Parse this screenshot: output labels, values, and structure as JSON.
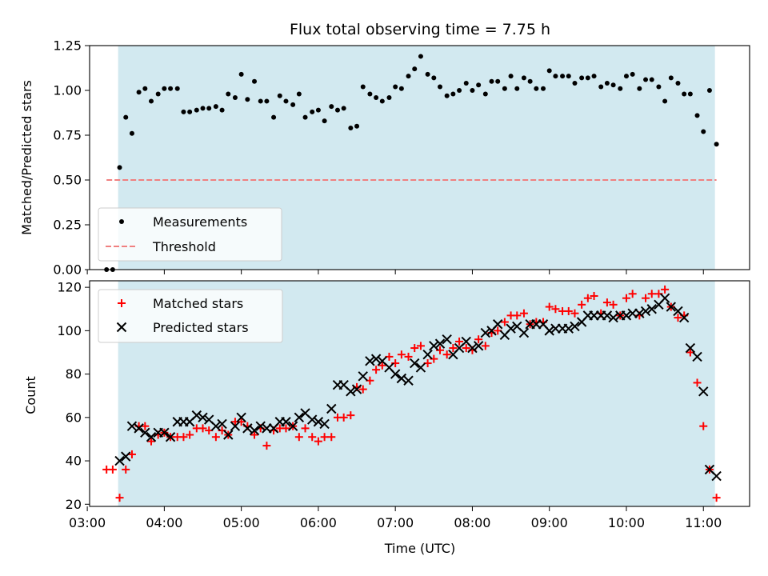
{
  "figure": {
    "title": "Flux total observing time = 7.75 h"
  },
  "chart_data": [
    {
      "type": "scatter",
      "panel": "top",
      "xlabel": "",
      "ylabel": "Matched/Predicted stars",
      "ylim": [
        0,
        1.25
      ],
      "yticks": [
        "0.00",
        "0.25",
        "0.50",
        "0.75",
        "1.00",
        "1.25"
      ],
      "xlim": [
        3.03,
        11.6
      ],
      "shaded_span": [
        3.4,
        11.15
      ],
      "shade_color": "#d2e9f0",
      "legend_position": "lower left",
      "series": [
        {
          "name": "Measurements",
          "marker": "dot",
          "color": "#000000",
          "x": [
            3.25,
            3.33,
            3.42,
            3.5,
            3.58,
            3.67,
            3.75,
            3.83,
            3.92,
            4.0,
            4.08,
            4.17,
            4.25,
            4.33,
            4.42,
            4.5,
            4.58,
            4.67,
            4.75,
            4.83,
            4.92,
            5.0,
            5.08,
            5.17,
            5.25,
            5.33,
            5.42,
            5.5,
            5.58,
            5.67,
            5.75,
            5.83,
            5.92,
            6.0,
            6.08,
            6.17,
            6.25,
            6.33,
            6.42,
            6.5,
            6.58,
            6.67,
            6.75,
            6.83,
            6.92,
            7.0,
            7.08,
            7.17,
            7.25,
            7.33,
            7.42,
            7.5,
            7.58,
            7.67,
            7.75,
            7.83,
            7.92,
            8.0,
            8.08,
            8.17,
            8.25,
            8.33,
            8.42,
            8.5,
            8.58,
            8.67,
            8.75,
            8.83,
            8.92,
            9.0,
            9.08,
            9.17,
            9.25,
            9.33,
            9.42,
            9.5,
            9.58,
            9.67,
            9.75,
            9.83,
            9.92,
            10.0,
            10.08,
            10.17,
            10.25,
            10.33,
            10.42,
            10.5,
            10.58,
            10.67,
            10.75,
            10.83,
            10.92,
            11.0,
            11.08,
            11.17
          ],
          "y": [
            0.0,
            0.0,
            0.57,
            0.85,
            0.76,
            0.99,
            1.01,
            0.94,
            0.98,
            1.01,
            1.01,
            1.01,
            0.88,
            0.88,
            0.89,
            0.9,
            0.9,
            0.91,
            0.89,
            0.98,
            0.96,
            1.09,
            0.95,
            1.05,
            0.94,
            0.94,
            0.85,
            0.97,
            0.94,
            0.92,
            0.98,
            0.85,
            0.88,
            0.89,
            0.83,
            0.91,
            0.89,
            0.9,
            0.79,
            0.8,
            1.02,
            0.98,
            0.96,
            0.94,
            0.96,
            1.02,
            1.01,
            1.08,
            1.12,
            1.19,
            1.09,
            1.07,
            1.02,
            0.97,
            0.98,
            1.0,
            1.04,
            1.0,
            1.03,
            0.98,
            1.05,
            1.05,
            1.01,
            1.08,
            1.01,
            1.07,
            1.05,
            1.01,
            1.01,
            1.11,
            1.08,
            1.08,
            1.08,
            1.04,
            1.07,
            1.07,
            1.08,
            1.02,
            1.04,
            1.03,
            1.01,
            1.08,
            1.09,
            1.01,
            1.06,
            1.06,
            1.02,
            0.94,
            1.07,
            1.04,
            0.98,
            0.98,
            0.86,
            0.77,
            1.0,
            0.7
          ]
        },
        {
          "name": "Threshold",
          "marker": "dashed-line",
          "color": "#f08080",
          "x": [
            3.25,
            11.17
          ],
          "y": [
            0.5,
            0.5
          ]
        }
      ]
    },
    {
      "type": "scatter",
      "panel": "bottom",
      "xlabel": "Time (UTC)",
      "ylabel": "Count",
      "ylim": [
        19,
        123
      ],
      "yticks": [
        "20",
        "40",
        "60",
        "80",
        "100",
        "120"
      ],
      "xlim": [
        3.03,
        11.6
      ],
      "xticks": [
        "03:00",
        "04:00",
        "05:00",
        "06:00",
        "07:00",
        "08:00",
        "09:00",
        "10:00",
        "11:00"
      ],
      "shaded_span": [
        3.4,
        11.15
      ],
      "shade_color": "#d2e9f0",
      "legend_position": "upper left",
      "x": [
        3.25,
        3.33,
        3.42,
        3.5,
        3.58,
        3.67,
        3.75,
        3.83,
        3.92,
        4.0,
        4.08,
        4.17,
        4.25,
        4.33,
        4.42,
        4.5,
        4.58,
        4.67,
        4.75,
        4.83,
        4.92,
        5.0,
        5.08,
        5.17,
        5.25,
        5.33,
        5.42,
        5.5,
        5.58,
        5.67,
        5.75,
        5.83,
        5.92,
        6.0,
        6.08,
        6.17,
        6.25,
        6.33,
        6.42,
        6.5,
        6.58,
        6.67,
        6.75,
        6.83,
        6.92,
        7.0,
        7.08,
        7.17,
        7.25,
        7.33,
        7.42,
        7.5,
        7.58,
        7.67,
        7.75,
        7.83,
        7.92,
        8.0,
        8.08,
        8.17,
        8.25,
        8.33,
        8.42,
        8.5,
        8.58,
        8.67,
        8.75,
        8.83,
        8.92,
        9.0,
        9.08,
        9.17,
        9.25,
        9.33,
        9.42,
        9.5,
        9.58,
        9.67,
        9.75,
        9.83,
        9.92,
        10.0,
        10.08,
        10.17,
        10.25,
        10.33,
        10.42,
        10.5,
        10.58,
        10.67,
        10.75,
        10.83,
        10.92,
        11.0,
        11.08,
        11.17
      ],
      "series": [
        {
          "name": "Matched stars",
          "marker": "plus",
          "color": "#ff0000",
          "y": [
            36,
            36,
            23,
            36,
            43,
            56,
            56,
            49,
            52,
            53,
            51,
            51,
            51,
            52,
            55,
            55,
            54,
            51,
            54,
            52,
            58,
            58,
            56,
            52,
            55,
            47,
            54,
            55,
            55,
            56,
            51,
            55,
            51,
            49,
            51,
            51,
            60,
            60,
            61,
            74,
            73,
            77,
            82,
            84,
            88,
            85,
            89,
            88,
            92,
            93,
            85,
            87,
            91,
            89,
            92,
            95,
            92,
            91,
            96,
            93,
            99,
            100,
            104,
            107,
            107,
            108,
            103,
            104,
            104,
            111,
            110,
            109,
            109,
            108,
            112,
            115,
            116,
            108,
            113,
            112,
            107,
            115,
            117,
            107,
            115,
            117,
            117,
            119,
            111,
            106,
            107,
            90,
            76,
            56,
            36,
            23
          ]
        },
        {
          "name": "Predicted stars",
          "marker": "x",
          "color": "#000000",
          "y": [
            null,
            null,
            40,
            42,
            56,
            55,
            53,
            51,
            53,
            53,
            51,
            58,
            58,
            58,
            61,
            60,
            59,
            56,
            57,
            52,
            56,
            60,
            55,
            54,
            56,
            55,
            55,
            58,
            58,
            56,
            60,
            62,
            59,
            58,
            57,
            64,
            75,
            75,
            72,
            73,
            79,
            86,
            87,
            86,
            83,
            80,
            78,
            77,
            85,
            83,
            89,
            93,
            94,
            96,
            89,
            92,
            95,
            92,
            93,
            99,
            100,
            103,
            98,
            101,
            102,
            99,
            103,
            103,
            103,
            100,
            101,
            101,
            101,
            102,
            104,
            107,
            107,
            107,
            107,
            106,
            107,
            107,
            108,
            108,
            109,
            110,
            112,
            115,
            111,
            109,
            106,
            92,
            88,
            72,
            36,
            33
          ]
        }
      ]
    }
  ]
}
